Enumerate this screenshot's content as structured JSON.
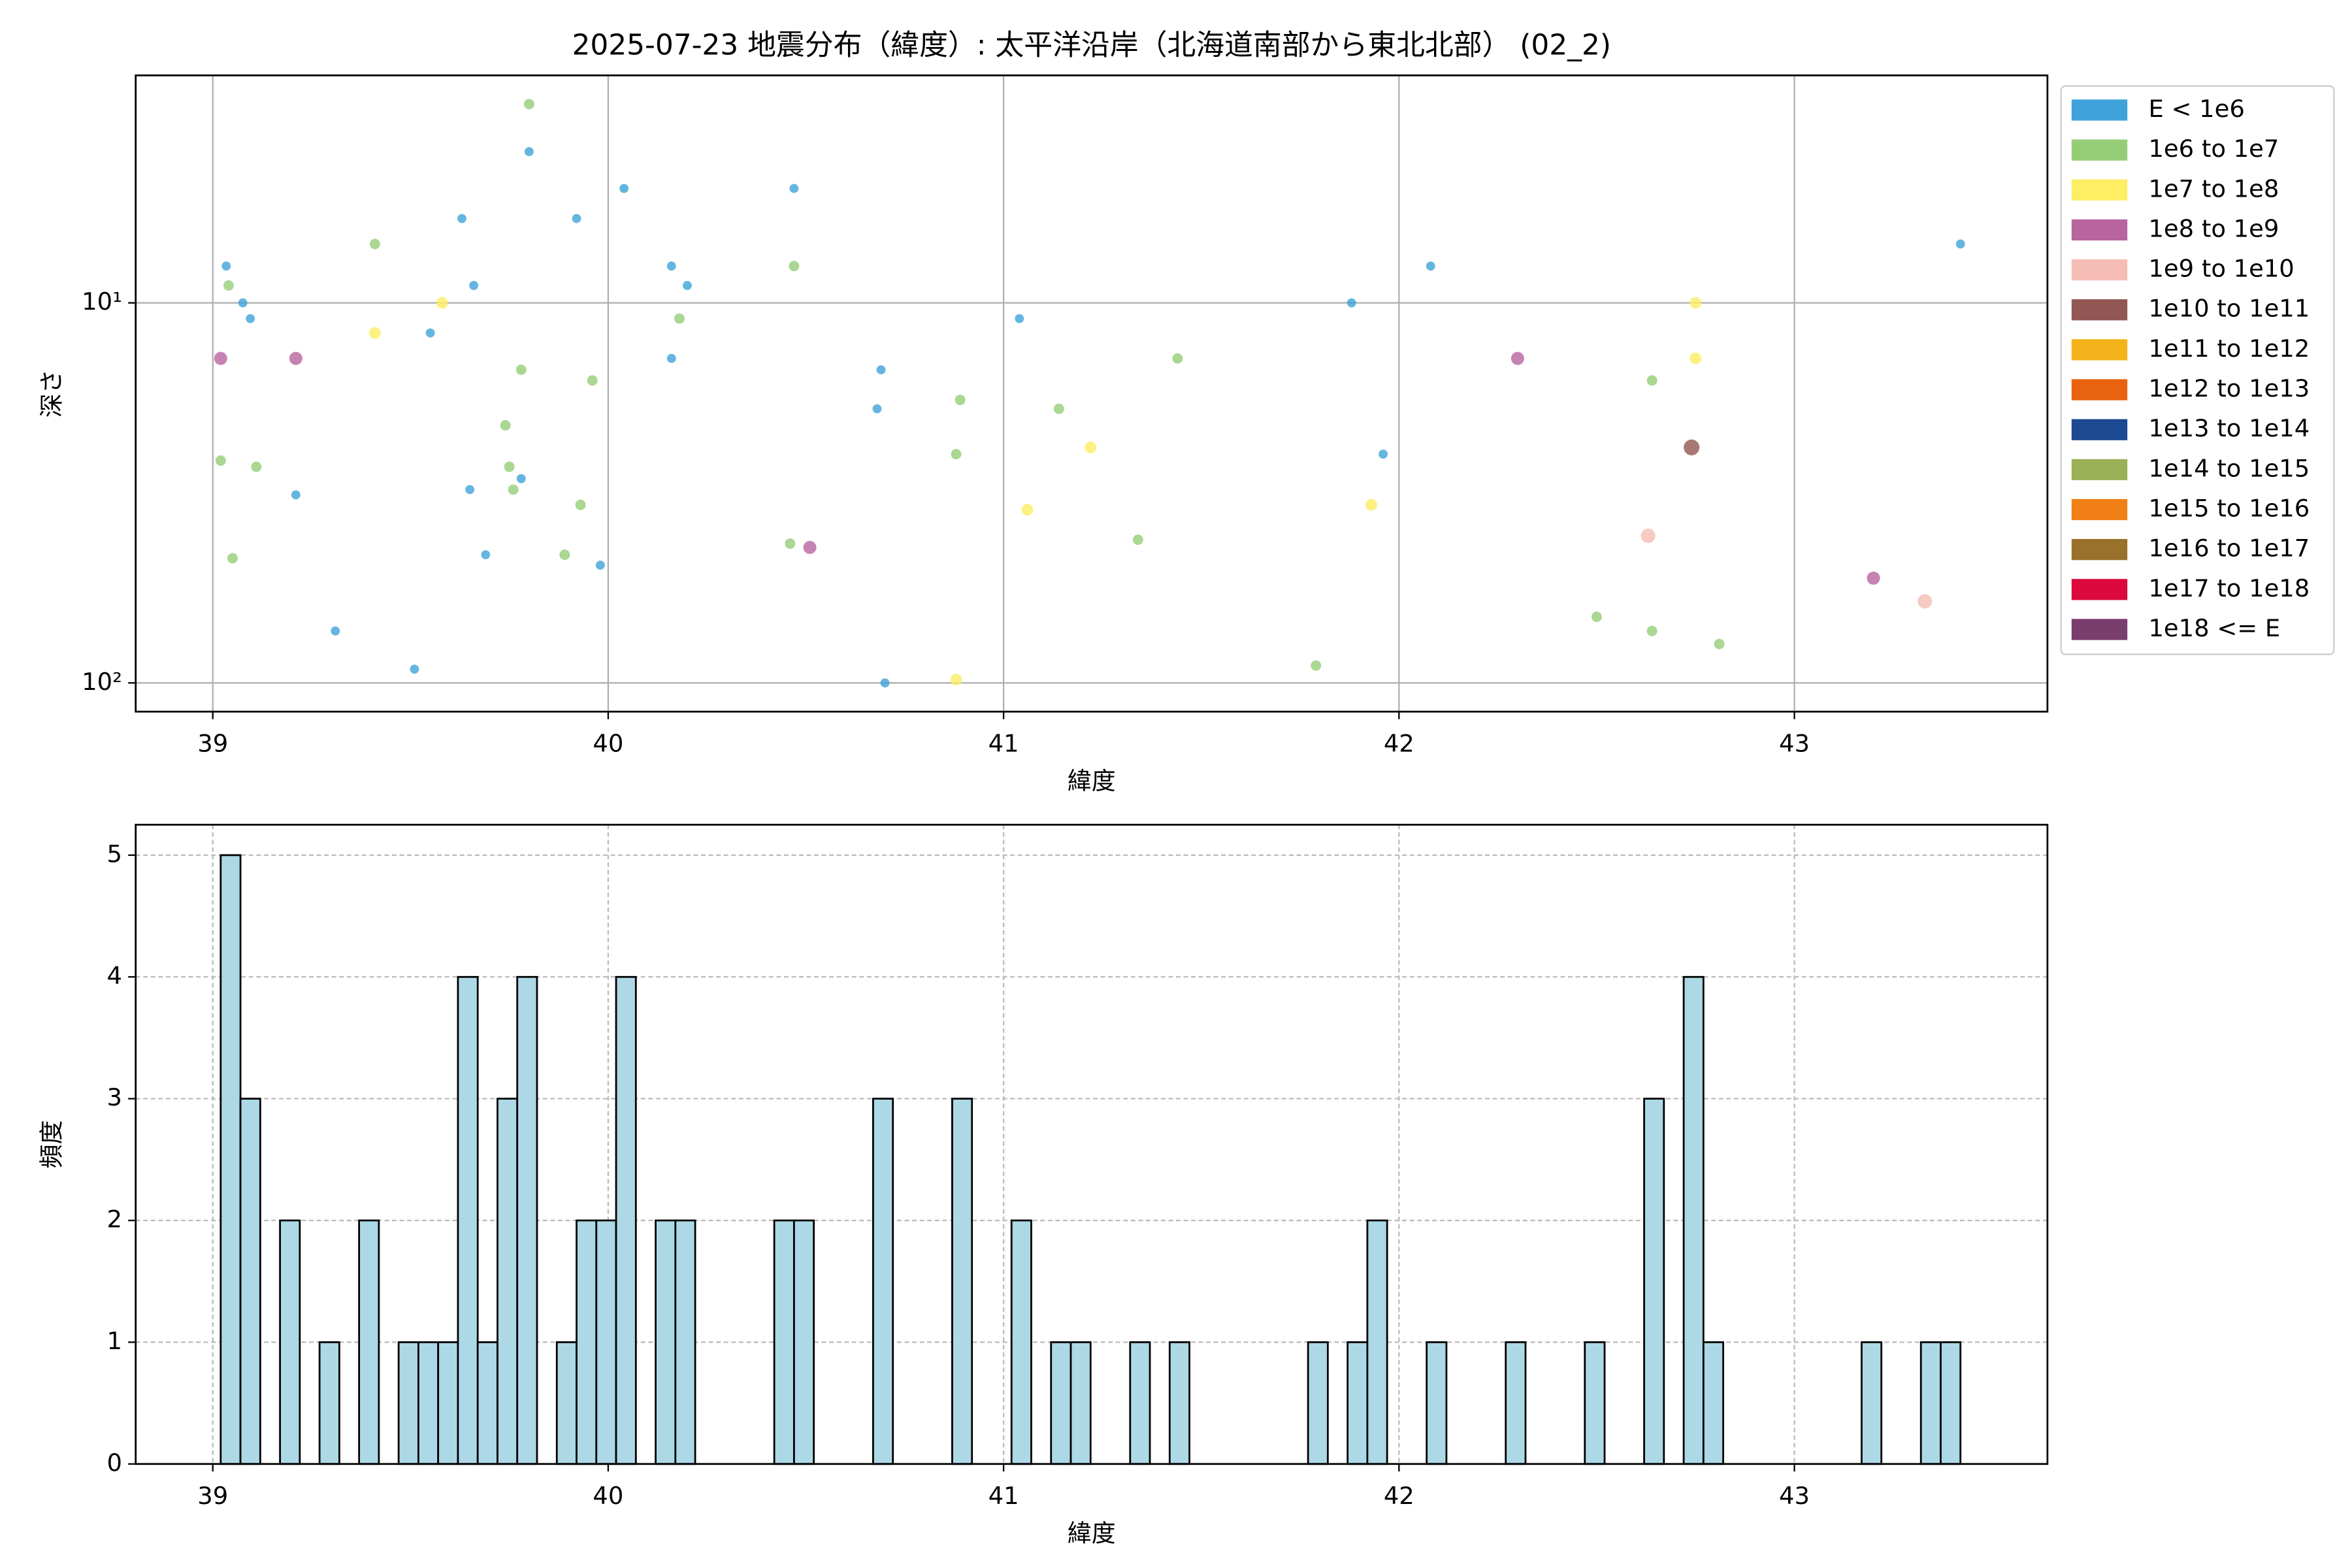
{
  "chart_data": [
    {
      "type": "scatter",
      "title": "2025-07-23 地震分布（緯度）: 太平洋沿岸（北海道南部から東北北部） (02_2)",
      "x_label": "緯度",
      "y_label": "深さ",
      "yscale": "log",
      "yinvert": true,
      "grid": true,
      "legend": "outside-right",
      "xlim": [
        38.805,
        43.64
      ],
      "xticks": [
        39,
        40,
        41,
        42,
        43
      ],
      "ylim": [
        2.52,
        119
      ],
      "yticks": [
        {
          "value": 10,
          "label": "10¹"
        },
        {
          "value": 100,
          "label": "10²"
        }
      ],
      "series": [
        {
          "name": "E < 1e6",
          "color": "#3fa2da",
          "x": [
            39.034,
            39.076,
            39.095,
            39.21,
            39.31,
            39.51,
            39.55,
            39.63,
            39.65,
            39.66,
            39.69,
            39.78,
            39.8,
            39.92,
            39.98,
            40.04,
            40.16,
            40.16,
            40.2,
            40.47,
            40.68,
            40.69,
            40.7,
            41.04,
            41.88,
            41.96,
            42.08,
            43.42
          ],
          "values": [
            8,
            10,
            11,
            32,
            73,
            92,
            12,
            6,
            31,
            9,
            46,
            29,
            4,
            6,
            49,
            5,
            8,
            14,
            9,
            5,
            19,
            15,
            100,
            11,
            10,
            25,
            8,
            7
          ]
        },
        {
          "name": "1e6 to 1e7",
          "color": "#95cd77",
          "x": [
            39.8,
            39.41,
            39.04,
            39.02,
            39.11,
            39.05,
            39.78,
            39.74,
            39.75,
            39.76,
            39.96,
            39.93,
            39.89,
            40.18,
            40.47,
            40.46,
            40.89,
            40.88,
            41.14,
            41.44,
            41.34,
            41.79,
            42.5,
            42.64,
            42.64,
            42.81
          ],
          "values": [
            3,
            7,
            9,
            26,
            27,
            47,
            15,
            21,
            27,
            31,
            16,
            34,
            46,
            11,
            8,
            43,
            18,
            25,
            19,
            14,
            42,
            90,
            67,
            16,
            73,
            79
          ]
        },
        {
          "name": "1e7 to 1e8",
          "color": "#fdee64",
          "x": [
            39.41,
            39.58,
            41.22,
            41.06,
            40.88,
            41.93,
            42.75,
            42.75
          ],
          "values": [
            12,
            10,
            24,
            35,
            98,
            34,
            10,
            14
          ]
        },
        {
          "name": "1e8 to 1e9",
          "color": "#b8649f",
          "x": [
            39.02,
            39.21,
            40.51,
            42.3,
            43.2
          ],
          "values": [
            14,
            14,
            44,
            14,
            53
          ]
        },
        {
          "name": "1e9 to 1e10",
          "color": "#f5bdb5",
          "x": [
            42.63,
            43.33
          ],
          "values": [
            41,
            61
          ]
        },
        {
          "name": "1e10 to 1e11",
          "color": "#925653",
          "x": [
            42.74
          ],
          "values": [
            24
          ]
        },
        {
          "name": "1e11 to 1e12",
          "color": "#f5b31b",
          "x": [],
          "values": []
        },
        {
          "name": "1e12 to 1e13",
          "color": "#e8620f",
          "x": [],
          "values": []
        },
        {
          "name": "1e13 to 1e14",
          "color": "#1b4a92",
          "x": [],
          "values": []
        },
        {
          "name": "1e14 to 1e15",
          "color": "#9bb057",
          "x": [],
          "values": []
        },
        {
          "name": "1e15 to 1e16",
          "color": "#f07f15",
          "x": [],
          "values": []
        },
        {
          "name": "1e16 to 1e17",
          "color": "#9a712a",
          "x": [],
          "values": []
        },
        {
          "name": "1e17 to 1e18",
          "color": "#dc0a3c",
          "x": [],
          "values": []
        },
        {
          "name": "1e18 <= E",
          "color": "#7a3e6e",
          "x": [],
          "values": []
        }
      ]
    },
    {
      "type": "histogram",
      "x_label": "緯度",
      "y_label": "頻度",
      "grid": true,
      "grid_linestyle": "dashed",
      "color": "#add8e6",
      "edgecolor": "#000000",
      "xlim": [
        38.805,
        43.64
      ],
      "xticks": [
        39,
        40,
        41,
        42,
        43
      ],
      "ylim": [
        0,
        5.25
      ],
      "yticks": [
        0,
        1,
        2,
        3,
        4,
        5
      ],
      "bins": [
        39.02,
        39.07,
        39.12,
        39.17,
        39.22,
        39.27,
        39.32,
        39.37,
        39.42,
        39.47,
        39.52,
        39.57,
        39.62,
        39.67,
        39.72,
        39.77,
        39.82,
        39.87,
        39.92,
        39.97,
        40.02,
        40.07,
        40.12,
        40.17,
        40.22,
        40.27,
        40.32,
        40.37,
        40.42,
        40.47,
        40.52,
        40.57,
        40.62,
        40.67,
        40.72,
        40.77,
        40.82,
        40.87,
        40.92,
        40.97,
        41.02,
        41.07,
        41.12,
        41.17,
        41.22,
        41.27,
        41.32,
        41.37,
        41.42,
        41.47,
        41.52,
        41.57,
        41.62,
        41.67,
        41.72,
        41.77,
        41.82,
        41.87,
        41.92,
        41.97,
        42.02,
        42.07,
        42.12,
        42.17,
        42.22,
        42.27,
        42.32,
        42.37,
        42.42,
        42.47,
        42.52,
        42.57,
        42.62,
        42.67,
        42.72,
        42.77,
        42.82,
        42.87,
        42.92,
        42.97,
        43.02,
        43.07,
        43.12,
        43.17,
        43.22,
        43.27,
        43.32,
        43.37,
        43.42
      ],
      "values": [
        5,
        3,
        0,
        2,
        0,
        1,
        0,
        2,
        0,
        1,
        1,
        1,
        4,
        1,
        3,
        4,
        0,
        1,
        2,
        2,
        4,
        0,
        2,
        2,
        0,
        0,
        0,
        0,
        2,
        2,
        0,
        0,
        0,
        3,
        0,
        0,
        0,
        3,
        0,
        0,
        2,
        0,
        1,
        1,
        0,
        0,
        1,
        0,
        1,
        0,
        0,
        0,
        0,
        0,
        0,
        1,
        0,
        1,
        2,
        0,
        0,
        1,
        0,
        0,
        0,
        1,
        0,
        0,
        0,
        1,
        0,
        0,
        3,
        0,
        4,
        1,
        0,
        0,
        0,
        0,
        0,
        0,
        0,
        1,
        0,
        0,
        1,
        1
      ]
    }
  ]
}
